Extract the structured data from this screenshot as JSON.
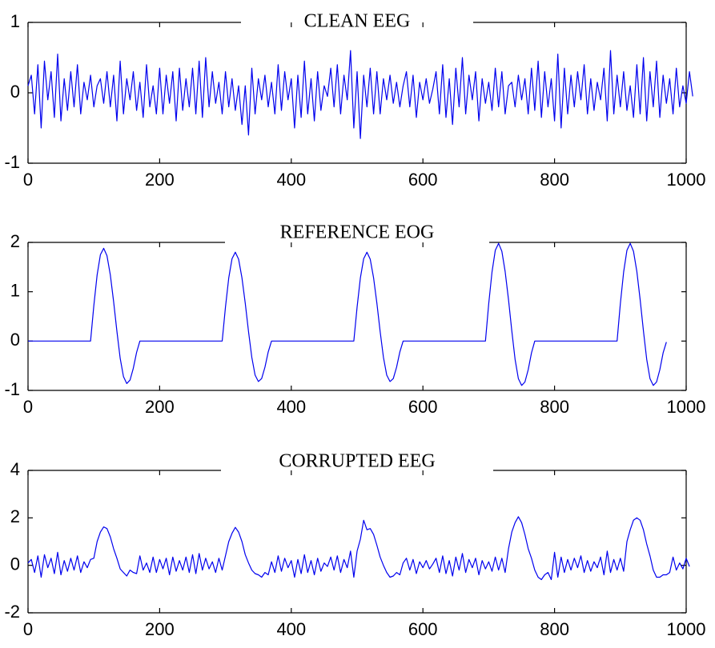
{
  "chart_data": [
    {
      "type": "line",
      "title": "CLEAN EEG",
      "xlim": [
        0,
        1000
      ],
      "ylim": [
        -1,
        1
      ],
      "xticks": [
        0,
        200,
        400,
        600,
        800,
        1000
      ],
      "yticks": [
        -1,
        0,
        1
      ],
      "color": "#0000ee",
      "series": [
        {
          "x_start": 0,
          "x_step": 5,
          "values": [
            0.1,
            0.25,
            -0.3,
            0.4,
            -0.5,
            0.45,
            -0.1,
            0.3,
            -0.35,
            0.55,
            -0.4,
            0.2,
            -0.25,
            0.3,
            -0.2,
            0.4,
            -0.3,
            0.15,
            -0.1,
            0.25,
            -0.2,
            0.1,
            0.2,
            -0.15,
            0.3,
            -0.2,
            0.25,
            -0.4,
            0.45,
            -0.3,
            0.2,
            -0.1,
            0.3,
            -0.25,
            0.15,
            -0.35,
            0.4,
            -0.2,
            0.1,
            -0.3,
            0.35,
            -0.3,
            0.25,
            -0.15,
            0.3,
            -0.4,
            0.35,
            -0.25,
            0.2,
            -0.2,
            0.35,
            -0.3,
            0.45,
            -0.35,
            0.5,
            -0.2,
            0.3,
            -0.15,
            0.15,
            -0.3,
            0.3,
            -0.2,
            0.2,
            -0.25,
            0.1,
            -0.45,
            0.1,
            -0.6,
            0.35,
            -0.3,
            0.2,
            -0.1,
            0.25,
            -0.2,
            0.15,
            -0.3,
            0.4,
            -0.25,
            0.3,
            -0.1,
            0.2,
            -0.5,
            0.25,
            -0.35,
            0.45,
            -0.3,
            0.2,
            -0.4,
            0.3,
            -0.25,
            0.1,
            -0.05,
            0.35,
            -0.2,
            0.4,
            -0.3,
            0.25,
            -0.1,
            0.6,
            -0.5,
            0.3,
            -0.65,
            0.25,
            -0.2,
            0.35,
            -0.3,
            0.3,
            -0.3,
            0.2,
            -0.1,
            0.25,
            -0.15,
            0.15,
            -0.2,
            0.1,
            0.3,
            -0.2,
            0.25,
            -0.35,
            0.15,
            -0.1,
            0.2,
            -0.15,
            0.05,
            0.3,
            -0.3,
            0.4,
            -0.35,
            0.2,
            -0.45,
            0.35,
            -0.2,
            0.5,
            -0.3,
            0.25,
            -0.1,
            0.3,
            -0.4,
            0.2,
            -0.15,
            0.15,
            -0.25,
            0.35,
            -0.2,
            0.3,
            -0.3,
            0.1,
            0.15,
            -0.2,
            0.25,
            -0.1,
            0.2,
            -0.3,
            0.35,
            -0.25,
            0.45,
            -0.35,
            0.3,
            -0.2,
            0.2,
            -0.4,
            0.55,
            -0.5,
            0.35,
            -0.3,
            0.25,
            -0.2,
            0.3,
            -0.1,
            0.4,
            -0.3,
            0.2,
            -0.25,
            0.15,
            -0.1,
            0.35,
            -0.4,
            0.6,
            -0.3,
            0.25,
            -0.2,
            0.3,
            -0.25,
            0.1,
            -0.35,
            0.4,
            -0.3,
            0.5,
            -0.4,
            0.3,
            -0.2,
            0.45,
            -0.35,
            0.25,
            -0.15,
            0.2,
            -0.3,
            0.35,
            -0.2,
            0.1,
            -0.15,
            0.3,
            -0.05
          ]
        }
      ]
    },
    {
      "type": "line",
      "title": "REFERENCE EOG",
      "xlim": [
        0,
        1000
      ],
      "ylim": [
        -1,
        2
      ],
      "xticks": [
        0,
        200,
        400,
        600,
        800,
        1000
      ],
      "yticks": [
        -1,
        0,
        1,
        2
      ],
      "color": "#0000ee",
      "series": [
        {
          "x_start": 0,
          "x_step": 5,
          "values": [
            0,
            0,
            0,
            0,
            0,
            0,
            0,
            0,
            0,
            0,
            0,
            0,
            0,
            0,
            0,
            0,
            0,
            0,
            0,
            0,
            0.72,
            1.34,
            1.75,
            1.88,
            1.73,
            1.34,
            0.8,
            0.2,
            -0.35,
            -0.72,
            -0.86,
            -0.79,
            -0.55,
            -0.23,
            0,
            0,
            0,
            0,
            0,
            0,
            0,
            0,
            0,
            0,
            0,
            0,
            0,
            0,
            0,
            0,
            0,
            0,
            0,
            0,
            0,
            0,
            0,
            0,
            0,
            0,
            0.69,
            1.28,
            1.67,
            1.8,
            1.66,
            1.28,
            0.77,
            0.19,
            -0.33,
            -0.69,
            -0.82,
            -0.76,
            -0.53,
            -0.22,
            0,
            0,
            0,
            0,
            0,
            0,
            0,
            0,
            0,
            0,
            0,
            0,
            0,
            0,
            0,
            0,
            0,
            0,
            0,
            0,
            0,
            0,
            0,
            0,
            0,
            0,
            0.69,
            1.28,
            1.67,
            1.8,
            1.66,
            1.28,
            0.77,
            0.19,
            -0.33,
            -0.69,
            -0.82,
            -0.76,
            -0.53,
            -0.22,
            0,
            0,
            0,
            0,
            0,
            0,
            0,
            0,
            0,
            0,
            0,
            0,
            0,
            0,
            0,
            0,
            0,
            0,
            0,
            0,
            0,
            0,
            0,
            0,
            0,
            0,
            0.76,
            1.4,
            1.84,
            1.98,
            1.82,
            1.41,
            0.84,
            0.21,
            -0.37,
            -0.76,
            -0.9,
            -0.83,
            -0.58,
            -0.24,
            0,
            0,
            0,
            0,
            0,
            0,
            0,
            0,
            0,
            0,
            0,
            0,
            0,
            0,
            0,
            0,
            0,
            0,
            0,
            0,
            0,
            0,
            0,
            0,
            0,
            0,
            0.76,
            1.4,
            1.84,
            1.98,
            1.82,
            1.41,
            0.84,
            0.21,
            -0.37,
            -0.76,
            -0.9,
            -0.83,
            -0.58,
            -0.24,
            -0.02
          ]
        }
      ]
    },
    {
      "type": "line",
      "title": "CORRUPTED EEG",
      "xlim": [
        0,
        1000
      ],
      "ylim": [
        -2,
        4
      ],
      "xticks": [
        0,
        200,
        400,
        600,
        800,
        1000
      ],
      "yticks": [
        -2,
        0,
        2,
        4
      ],
      "color": "#0000ee",
      "series": [
        {
          "x_start": 0,
          "x_step": 5,
          "values": [
            0.1,
            0.25,
            -0.3,
            0.4,
            -0.5,
            0.45,
            -0.1,
            0.3,
            -0.35,
            0.55,
            -0.4,
            0.2,
            -0.25,
            0.3,
            -0.2,
            0.4,
            -0.3,
            0.15,
            -0.1,
            0.25,
            0.3,
            1.0,
            1.4,
            1.62,
            1.55,
            1.2,
            0.7,
            0.3,
            -0.15,
            -0.3,
            -0.45,
            -0.2,
            -0.3,
            -0.35,
            0.4,
            -0.2,
            0.1,
            -0.3,
            0.35,
            -0.3,
            0.25,
            -0.15,
            0.3,
            -0.4,
            0.35,
            -0.25,
            0.2,
            -0.2,
            0.35,
            -0.3,
            0.45,
            -0.35,
            0.5,
            -0.2,
            0.3,
            -0.15,
            0.15,
            -0.3,
            0.3,
            -0.2,
            0.4,
            1.0,
            1.35,
            1.6,
            1.4,
            1.0,
            0.45,
            0.1,
            -0.2,
            -0.35,
            -0.4,
            -0.5,
            -0.3,
            -0.4,
            0.15,
            -0.3,
            0.4,
            -0.25,
            0.3,
            -0.1,
            0.2,
            -0.5,
            0.25,
            -0.35,
            0.45,
            -0.3,
            0.2,
            -0.4,
            0.3,
            -0.25,
            0.1,
            -0.05,
            0.35,
            -0.2,
            0.4,
            -0.3,
            0.25,
            -0.1,
            0.6,
            -0.5,
            0.6,
            1.1,
            1.9,
            1.5,
            1.55,
            1.3,
            0.85,
            0.35,
            0.0,
            -0.3,
            -0.5,
            -0.45,
            -0.3,
            -0.4,
            0.1,
            0.3,
            -0.2,
            0.25,
            -0.35,
            0.15,
            -0.1,
            0.2,
            -0.15,
            0.05,
            0.3,
            -0.3,
            0.4,
            -0.35,
            0.2,
            -0.45,
            0.35,
            -0.2,
            0.5,
            -0.3,
            0.25,
            -0.1,
            0.3,
            -0.4,
            0.2,
            -0.15,
            0.15,
            -0.25,
            0.35,
            -0.2,
            0.3,
            -0.3,
            0.7,
            1.4,
            1.8,
            2.05,
            1.8,
            1.3,
            0.7,
            0.3,
            -0.2,
            -0.5,
            -0.6,
            -0.4,
            -0.3,
            -0.6,
            0.55,
            -0.5,
            0.35,
            -0.3,
            0.25,
            -0.2,
            0.3,
            -0.1,
            0.4,
            -0.3,
            0.2,
            -0.25,
            0.15,
            -0.1,
            0.35,
            -0.4,
            0.6,
            -0.3,
            0.25,
            -0.2,
            0.3,
            -0.25,
            1.0,
            1.5,
            1.9,
            2.0,
            1.9,
            1.5,
            0.9,
            0.4,
            -0.2,
            -0.5,
            -0.5,
            -0.4,
            -0.4,
            -0.3,
            0.35,
            -0.2,
            0.1,
            -0.15,
            0.3,
            -0.05
          ]
        }
      ]
    }
  ]
}
